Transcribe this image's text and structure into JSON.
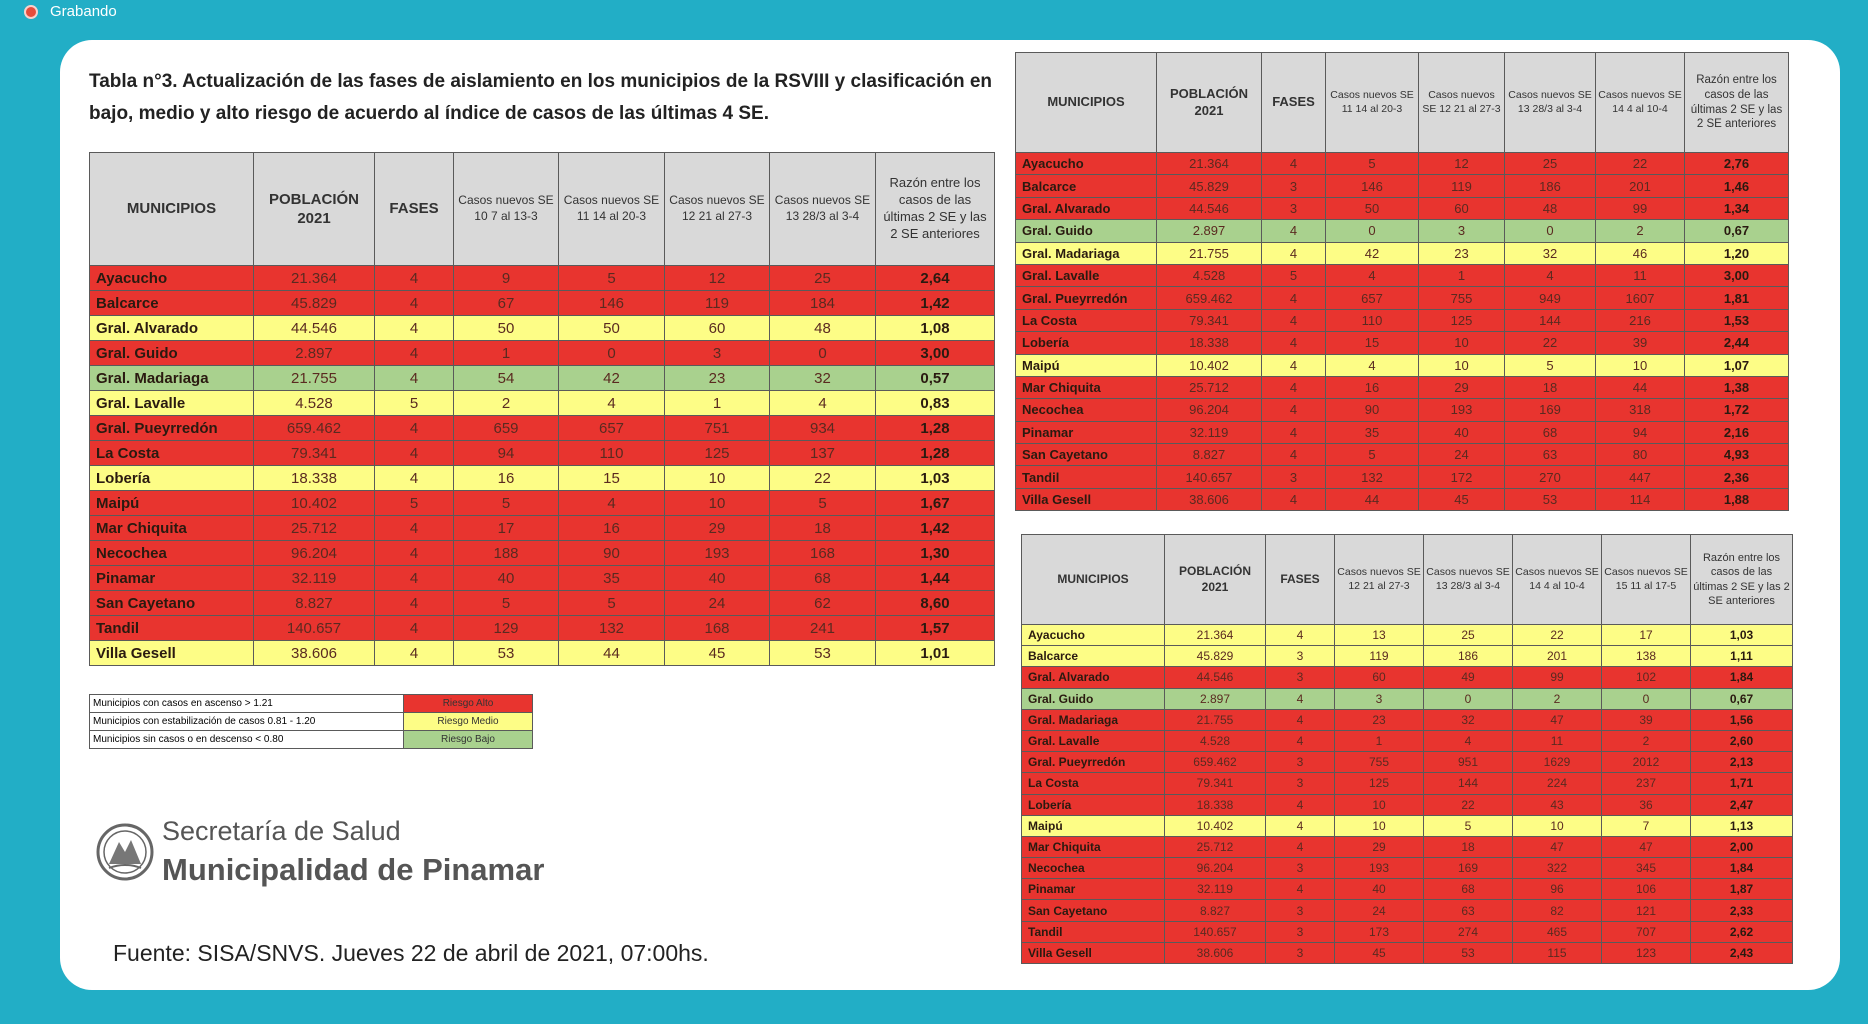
{
  "recording_label": "Grabando",
  "title": "Tabla n°3. Actualización de las fases de aislamiento en los municipios de la RSVIII y clasificación en bajo, medio y alto riesgo de acuerdo al índice de casos de las últimas 4 SE.",
  "tables": [
    {
      "headers": [
        "MUNICIPIOS",
        "POBLACIÓN 2021",
        "FASES",
        "Casos nuevos SE 10 7 al 13-3",
        "Casos nuevos SE 11 14 al 20-3",
        "Casos nuevos SE 12 21 al 27-3",
        "Casos nuevos SE 13 28/3 al 3-4",
        "Razón entre los casos de las últimas 2 SE y las 2 SE anteriores"
      ],
      "rows": [
        {
          "cells": [
            "Ayacucho",
            "21.364",
            "4",
            "9",
            "5",
            "12",
            "25",
            "2,64"
          ],
          "color": "#e8342f"
        },
        {
          "cells": [
            "Balcarce",
            "45.829",
            "4",
            "67",
            "146",
            "119",
            "184",
            "1,42"
          ],
          "color": "#e8342f"
        },
        {
          "cells": [
            "Gral. Alvarado",
            "44.546",
            "4",
            "50",
            "50",
            "60",
            "48",
            "1,08"
          ],
          "color": "#fdfd86"
        },
        {
          "cells": [
            "Gral. Guido",
            "2.897",
            "4",
            "1",
            "0",
            "3",
            "0",
            "3,00"
          ],
          "color": "#e8342f"
        },
        {
          "cells": [
            "Gral. Madariaga",
            "21.755",
            "4",
            "54",
            "42",
            "23",
            "32",
            "0,57"
          ],
          "color": "#a9d18e"
        },
        {
          "cells": [
            "Gral. Lavalle",
            "4.528",
            "5",
            "2",
            "4",
            "1",
            "4",
            "0,83"
          ],
          "color": "#fdfd86"
        },
        {
          "cells": [
            "Gral. Pueyrredón",
            "659.462",
            "4",
            "659",
            "657",
            "751",
            "934",
            "1,28"
          ],
          "color": "#e8342f"
        },
        {
          "cells": [
            "La Costa",
            "79.341",
            "4",
            "94",
            "110",
            "125",
            "137",
            "1,28"
          ],
          "color": "#e8342f"
        },
        {
          "cells": [
            "Lobería",
            "18.338",
            "4",
            "16",
            "15",
            "10",
            "22",
            "1,03"
          ],
          "color": "#fdfd86"
        },
        {
          "cells": [
            "Maipú",
            "10.402",
            "5",
            "5",
            "4",
            "10",
            "5",
            "1,67"
          ],
          "color": "#e8342f"
        },
        {
          "cells": [
            "Mar Chiquita",
            "25.712",
            "4",
            "17",
            "16",
            "29",
            "18",
            "1,42"
          ],
          "color": "#e8342f"
        },
        {
          "cells": [
            "Necochea",
            "96.204",
            "4",
            "188",
            "90",
            "193",
            "168",
            "1,30"
          ],
          "color": "#e8342f"
        },
        {
          "cells": [
            "Pinamar",
            "32.119",
            "4",
            "40",
            "35",
            "40",
            "68",
            "1,44"
          ],
          "color": "#e8342f"
        },
        {
          "cells": [
            "San Cayetano",
            "8.827",
            "4",
            "5",
            "5",
            "24",
            "62",
            "8,60"
          ],
          "color": "#e8342f"
        },
        {
          "cells": [
            "Tandil",
            "140.657",
            "4",
            "129",
            "132",
            "168",
            "241",
            "1,57"
          ],
          "color": "#e8342f"
        },
        {
          "cells": [
            "Villa Gesell",
            "38.606",
            "4",
            "53",
            "44",
            "45",
            "53",
            "1,01"
          ],
          "color": "#fdfd86"
        }
      ]
    },
    {
      "headers": [
        "MUNICIPIOS",
        "POBLACIÓN 2021",
        "FASES",
        "Casos nuevos SE 11 14 al 20-3",
        "Casos nuevos SE 12 21 al 27-3",
        "Casos nuevos SE 13 28/3 al 3-4",
        "Casos nuevos SE 14 4 al 10-4",
        "Razón entre los casos de las últimas 2 SE y las 2 SE anteriores"
      ],
      "rows": [
        {
          "cells": [
            "Ayacucho",
            "21.364",
            "4",
            "5",
            "12",
            "25",
            "22",
            "2,76"
          ],
          "color": "#e8342f"
        },
        {
          "cells": [
            "Balcarce",
            "45.829",
            "3",
            "146",
            "119",
            "186",
            "201",
            "1,46"
          ],
          "color": "#e8342f"
        },
        {
          "cells": [
            "Gral. Alvarado",
            "44.546",
            "3",
            "50",
            "60",
            "48",
            "99",
            "1,34"
          ],
          "color": "#e8342f"
        },
        {
          "cells": [
            "Gral. Guido",
            "2.897",
            "4",
            "0",
            "3",
            "0",
            "2",
            "0,67"
          ],
          "color": "#a9d18e"
        },
        {
          "cells": [
            "Gral. Madariaga",
            "21.755",
            "4",
            "42",
            "23",
            "32",
            "46",
            "1,20"
          ],
          "color": "#fdfd86"
        },
        {
          "cells": [
            "Gral. Lavalle",
            "4.528",
            "5",
            "4",
            "1",
            "4",
            "11",
            "3,00"
          ],
          "color": "#e8342f"
        },
        {
          "cells": [
            "Gral. Pueyrredón",
            "659.462",
            "4",
            "657",
            "755",
            "949",
            "1607",
            "1,81"
          ],
          "color": "#e8342f"
        },
        {
          "cells": [
            "La Costa",
            "79.341",
            "4",
            "110",
            "125",
            "144",
            "216",
            "1,53"
          ],
          "color": "#e8342f"
        },
        {
          "cells": [
            "Lobería",
            "18.338",
            "4",
            "15",
            "10",
            "22",
            "39",
            "2,44"
          ],
          "color": "#e8342f"
        },
        {
          "cells": [
            "Maipú",
            "10.402",
            "4",
            "4",
            "10",
            "5",
            "10",
            "1,07"
          ],
          "color": "#fdfd86"
        },
        {
          "cells": [
            "Mar Chiquita",
            "25.712",
            "4",
            "16",
            "29",
            "18",
            "44",
            "1,38"
          ],
          "color": "#e8342f"
        },
        {
          "cells": [
            "Necochea",
            "96.204",
            "4",
            "90",
            "193",
            "169",
            "318",
            "1,72"
          ],
          "color": "#e8342f"
        },
        {
          "cells": [
            "Pinamar",
            "32.119",
            "4",
            "35",
            "40",
            "68",
            "94",
            "2,16"
          ],
          "color": "#e8342f"
        },
        {
          "cells": [
            "San Cayetano",
            "8.827",
            "4",
            "5",
            "24",
            "63",
            "80",
            "4,93"
          ],
          "color": "#e8342f"
        },
        {
          "cells": [
            "Tandil",
            "140.657",
            "3",
            "132",
            "172",
            "270",
            "447",
            "2,36"
          ],
          "color": "#e8342f"
        },
        {
          "cells": [
            "Villa Gesell",
            "38.606",
            "4",
            "44",
            "45",
            "53",
            "114",
            "1,88"
          ],
          "color": "#e8342f"
        }
      ]
    },
    {
      "headers": [
        "MUNICIPIOS",
        "POBLACIÓN 2021",
        "FASES",
        "Casos nuevos SE 12 21 al 27-3",
        "Casos nuevos SE 13 28/3 al 3-4",
        "Casos nuevos SE 14 4 al 10-4",
        "Casos nuevos SE 15 11 al 17-5",
        "Razón entre los casos de las últimas 2 SE y las 2 SE anteriores"
      ],
      "rows": [
        {
          "cells": [
            "Ayacucho",
            "21.364",
            "4",
            "13",
            "25",
            "22",
            "17",
            "1,03"
          ],
          "color": "#fdfd86"
        },
        {
          "cells": [
            "Balcarce",
            "45.829",
            "3",
            "119",
            "186",
            "201",
            "138",
            "1,11"
          ],
          "color": "#fdfd86"
        },
        {
          "cells": [
            "Gral. Alvarado",
            "44.546",
            "3",
            "60",
            "49",
            "99",
            "102",
            "1,84"
          ],
          "color": "#e8342f"
        },
        {
          "cells": [
            "Gral. Guido",
            "2.897",
            "4",
            "3",
            "0",
            "2",
            "0",
            "0,67"
          ],
          "color": "#a9d18e"
        },
        {
          "cells": [
            "Gral. Madariaga",
            "21.755",
            "4",
            "23",
            "32",
            "47",
            "39",
            "1,56"
          ],
          "color": "#e8342f"
        },
        {
          "cells": [
            "Gral. Lavalle",
            "4.528",
            "4",
            "1",
            "4",
            "11",
            "2",
            "2,60"
          ],
          "color": "#e8342f"
        },
        {
          "cells": [
            "Gral. Pueyrredón",
            "659.462",
            "3",
            "755",
            "951",
            "1629",
            "2012",
            "2,13"
          ],
          "color": "#e8342f"
        },
        {
          "cells": [
            "La Costa",
            "79.341",
            "3",
            "125",
            "144",
            "224",
            "237",
            "1,71"
          ],
          "color": "#e8342f"
        },
        {
          "cells": [
            "Lobería",
            "18.338",
            "4",
            "10",
            "22",
            "43",
            "36",
            "2,47"
          ],
          "color": "#e8342f"
        },
        {
          "cells": [
            "Maipú",
            "10.402",
            "4",
            "10",
            "5",
            "10",
            "7",
            "1,13"
          ],
          "color": "#fdfd86"
        },
        {
          "cells": [
            "Mar Chiquita",
            "25.712",
            "4",
            "29",
            "18",
            "47",
            "47",
            "2,00"
          ],
          "color": "#e8342f"
        },
        {
          "cells": [
            "Necochea",
            "96.204",
            "3",
            "193",
            "169",
            "322",
            "345",
            "1,84"
          ],
          "color": "#e8342f"
        },
        {
          "cells": [
            "Pinamar",
            "32.119",
            "4",
            "40",
            "68",
            "96",
            "106",
            "1,87"
          ],
          "color": "#e8342f"
        },
        {
          "cells": [
            "San Cayetano",
            "8.827",
            "3",
            "24",
            "63",
            "82",
            "121",
            "2,33"
          ],
          "color": "#e8342f"
        },
        {
          "cells": [
            "Tandil",
            "140.657",
            "3",
            "173",
            "274",
            "465",
            "707",
            "2,62"
          ],
          "color": "#e8342f"
        },
        {
          "cells": [
            "Villa Gesell",
            "38.606",
            "3",
            "45",
            "53",
            "115",
            "123",
            "2,43"
          ],
          "color": "#e8342f"
        }
      ]
    }
  ],
  "legend": [
    {
      "label": "Municipios con casos en ascenso > 1.21",
      "risk": "Riesgo Alto",
      "color": "#e8342f"
    },
    {
      "label": "Municipios con estabilización de casos 0.81 - 1.20",
      "risk": "Riesgo Medio",
      "color": "#fdfd86"
    },
    {
      "label": "Municipios sin casos o en descenso < 0.80",
      "risk": "Riesgo Bajo",
      "color": "#a9d18e"
    }
  ],
  "logo": {
    "line1": "Secretaría de Salud",
    "line2": "Municipalidad de Pinamar"
  },
  "source": "Fuente: SISA/SNVS. Jueves 22 de abril de 2021, 07:00hs."
}
